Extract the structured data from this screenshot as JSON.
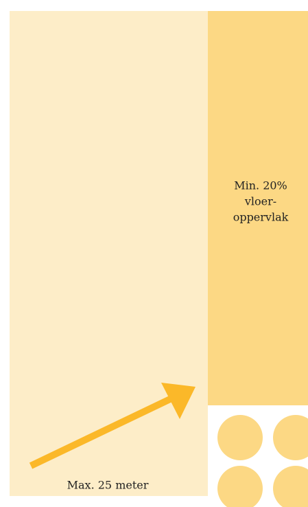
{
  "labels": {
    "area": [
      "Min. 20%",
      "vloer-",
      "oppervlak"
    ],
    "distance": "Max. 25 meter"
  }
}
